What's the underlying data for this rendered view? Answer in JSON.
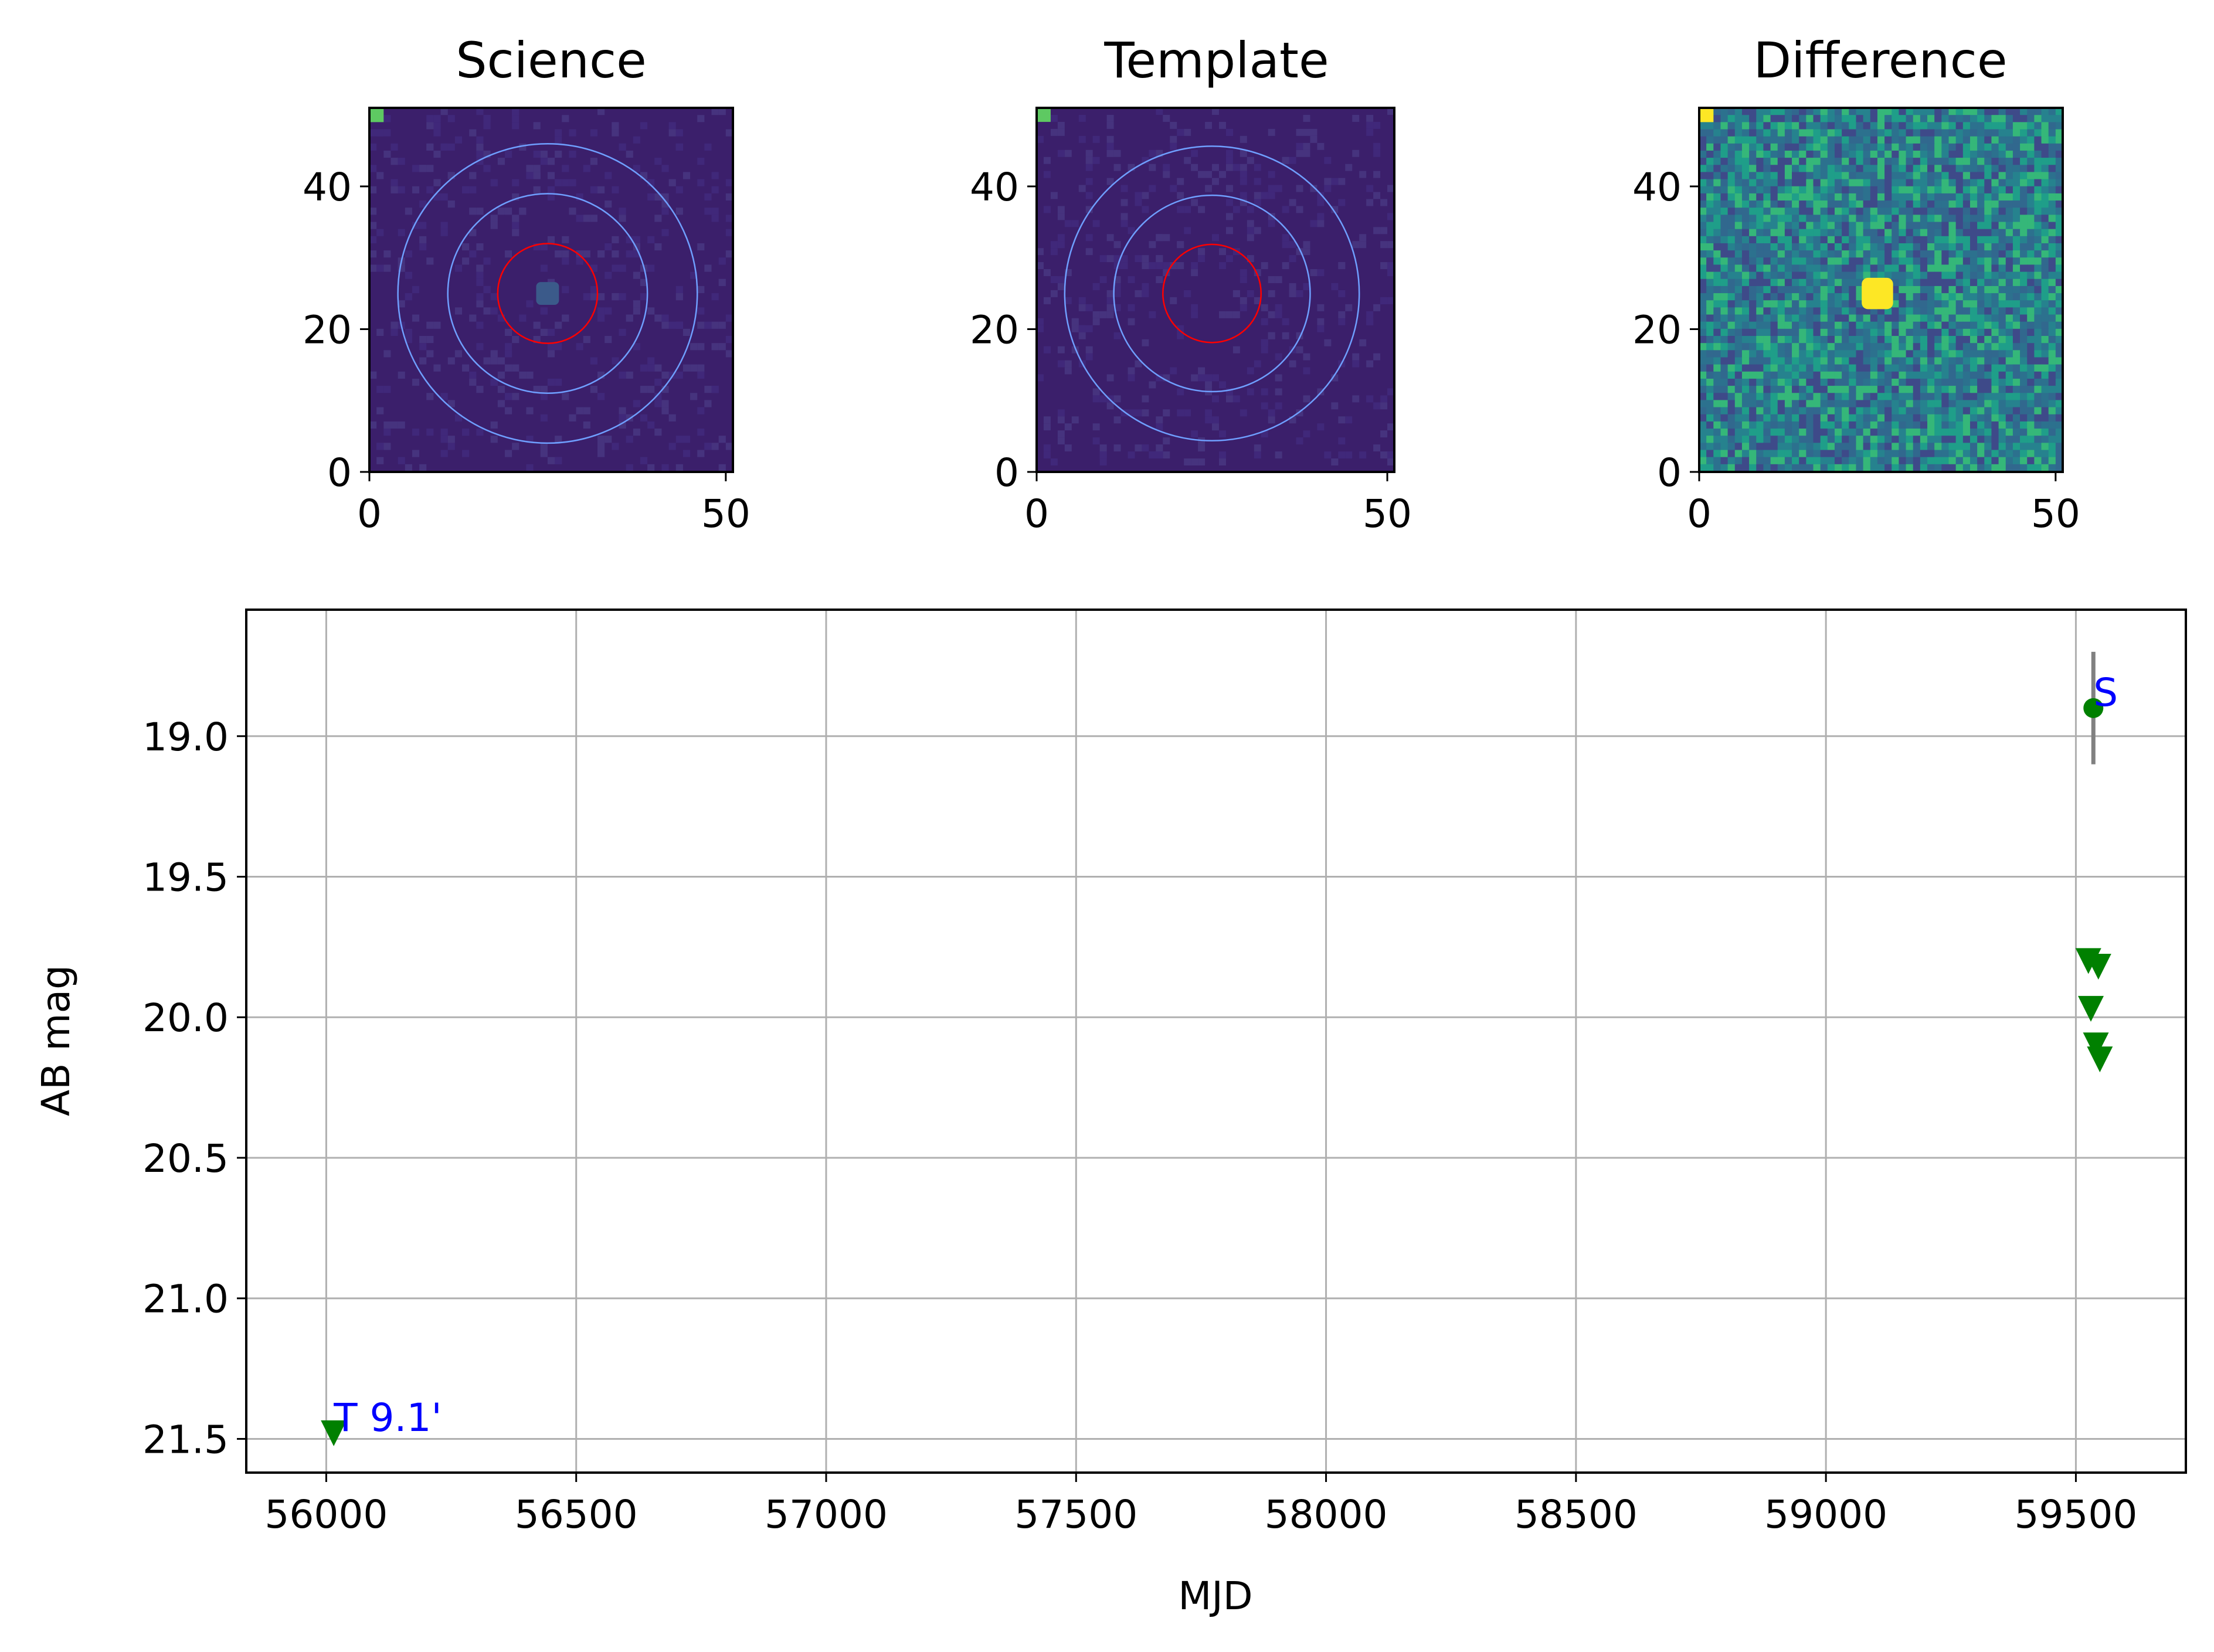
{
  "images": [
    {
      "title": "Science",
      "x_ticks": [
        "0",
        "50"
      ],
      "y_ticks": [
        "0",
        "20",
        "40"
      ],
      "x_range": [
        0,
        51
      ],
      "y_range": [
        0,
        51
      ],
      "circles": [
        {
          "cx": 25,
          "cy": 25,
          "r": 7,
          "color": "#ff0000"
        },
        {
          "cx": 25,
          "cy": 25,
          "r": 14,
          "color": "#6f9fff"
        },
        {
          "cx": 25,
          "cy": 25,
          "r": 21,
          "color": "#6f9fff"
        }
      ],
      "background_color": "#3b1f6b",
      "source_color": "#3b5a8a"
    },
    {
      "title": "Template",
      "x_ticks": [
        "0",
        "50"
      ],
      "y_ticks": [
        "0",
        "20",
        "40"
      ],
      "x_range": [
        0,
        51
      ],
      "y_range": [
        0,
        51
      ],
      "circles": [
        {
          "cx": 25,
          "cy": 25,
          "r": 7,
          "color": "#ff0000"
        },
        {
          "cx": 25,
          "cy": 25,
          "r": 14,
          "color": "#6f9fff"
        },
        {
          "cx": 25,
          "cy": 25,
          "r": 21,
          "color": "#6f9fff"
        }
      ],
      "background_color": "#3b1f6b"
    },
    {
      "title": "Difference",
      "x_ticks": [
        "0",
        "50"
      ],
      "y_ticks": [
        "0",
        "20",
        "40"
      ],
      "x_range": [
        0,
        51
      ],
      "y_range": [
        0,
        51
      ],
      "circles": [],
      "background_color": "#2a6f8e",
      "source_color": "#fde725"
    }
  ],
  "chart_data": {
    "type": "scatter",
    "xlabel": "MJD",
    "ylabel": "AB mag",
    "xlim": [
      55840,
      59720
    ],
    "ylim": [
      21.62,
      18.55
    ],
    "y_inverted": true,
    "grid": true,
    "x_ticks": [
      56000,
      56500,
      57000,
      57500,
      58000,
      58500,
      59000,
      59500
    ],
    "y_ticks": [
      19.0,
      19.5,
      20.0,
      20.5,
      21.0,
      21.5
    ],
    "y_tick_labels": [
      "19.0",
      "19.5",
      "20.0",
      "20.5",
      "21.0",
      "21.5"
    ],
    "detections": [
      {
        "x": 59535,
        "y": 18.9,
        "err": 0.2,
        "color": "#008000",
        "err_color": "#808080",
        "label": "S"
      }
    ],
    "upper_limits": [
      {
        "x": 56015,
        "y": 21.48,
        "color": "#008000",
        "label": "T 9.1'"
      },
      {
        "x": 59525,
        "y": 19.8
      },
      {
        "x": 59545,
        "y": 19.82
      },
      {
        "x": 59530,
        "y": 19.97
      },
      {
        "x": 59540,
        "y": 20.1
      },
      {
        "x": 59548,
        "y": 20.15
      }
    ],
    "marker_color": "#008000",
    "annotation_color": "#0000ff"
  }
}
